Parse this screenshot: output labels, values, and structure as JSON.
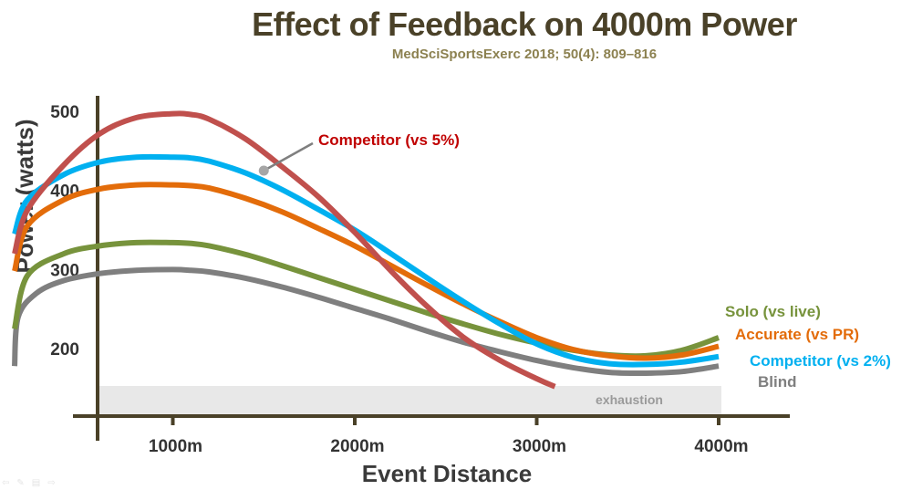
{
  "header": {
    "title": "Effect of Feedback on 4000m Power",
    "subtitle": "MedSciSportsExerc 2018; 50(4): 809–816"
  },
  "chart_data": {
    "type": "line",
    "title": "Effect of Feedback on 4000m Power",
    "subtitle": "MedSciSportsExerc 2018; 50(4): 809–816",
    "xlabel": "Event Distance",
    "ylabel": "Power (watts)",
    "xlim": [
      0,
      4350
    ],
    "ylim": [
      100,
      520
    ],
    "x_ticks": [
      1000,
      2000,
      3000,
      4000
    ],
    "x_tick_labels": [
      "1000m",
      "2000m",
      "3000m",
      "4000m"
    ],
    "y_ticks": [
      200,
      300,
      400,
      500
    ],
    "y_tick_labels": [
      "200",
      "300",
      "400",
      "500"
    ],
    "grid": false,
    "legend": "inline labels at right end of curves",
    "band": {
      "label": "exhaustion",
      "y_range": [
        135,
        166
      ],
      "x_range": [
        0,
        4000
      ]
    },
    "series": [
      {
        "name": "Competitor (vs 5%)",
        "color": "#c0504d",
        "x": [
          80,
          200,
          400,
          600,
          800,
          1000,
          1100,
          1200,
          1400,
          1600,
          1800,
          2000,
          2200,
          2400,
          2600,
          2800,
          3000,
          3100
        ],
        "y": [
          320,
          375,
          432,
          472,
          492,
          497,
          496,
          490,
          465,
          430,
          392,
          347,
          298,
          253,
          214,
          185,
          162,
          152
        ],
        "annotation": {
          "label": "Competitor (vs 5%)",
          "x": 1500,
          "y": 425
        }
      },
      {
        "name": "Competitor (vs 2%)",
        "color": "#00b0f0",
        "x": [
          80,
          200,
          400,
          600,
          800,
          1000,
          1100,
          1200,
          1400,
          1600,
          1800,
          2000,
          2200,
          2400,
          2600,
          2800,
          3000,
          3200,
          3400,
          3600,
          3800,
          4000
        ],
        "y": [
          345,
          388,
          420,
          436,
          442,
          442,
          441,
          437,
          422,
          401,
          376,
          350,
          320,
          289,
          259,
          231,
          206,
          189,
          181,
          180,
          183,
          190
        ]
      },
      {
        "name": "Accurate (vs PR)",
        "color": "#e36c0a",
        "x": [
          80,
          200,
          400,
          600,
          800,
          1000,
          1100,
          1200,
          1400,
          1600,
          1800,
          2000,
          2200,
          2400,
          2600,
          2800,
          3000,
          3200,
          3400,
          3600,
          3800,
          4000
        ],
        "y": [
          298,
          355,
          388,
          402,
          407,
          407,
          406,
          403,
          390,
          373,
          352,
          330,
          305,
          280,
          256,
          234,
          214,
          199,
          191,
          188,
          192,
          203
        ]
      },
      {
        "name": "Solo (vs live)",
        "color": "#77933c",
        "x": [
          80,
          200,
          400,
          600,
          800,
          1000,
          1100,
          1200,
          1400,
          1600,
          1800,
          2000,
          2200,
          2400,
          2600,
          2800,
          3000,
          3200,
          3400,
          3600,
          3800,
          4000
        ],
        "y": [
          225,
          292,
          320,
          330,
          334,
          334,
          333,
          330,
          319,
          305,
          290,
          275,
          260,
          245,
          231,
          218,
          207,
          198,
          192,
          191,
          198,
          214
        ]
      },
      {
        "name": "Blind",
        "color": "#7f7f7f",
        "x": [
          80,
          150,
          250,
          400,
          600,
          800,
          1000,
          1100,
          1200,
          1400,
          1600,
          1800,
          2000,
          2200,
          2400,
          2600,
          2800,
          3000,
          3200,
          3400,
          3600,
          3800,
          4000
        ],
        "y": [
          178,
          240,
          270,
          286,
          295,
          299,
          300,
          299,
          297,
          289,
          278,
          265,
          251,
          237,
          222,
          208,
          196,
          185,
          176,
          170,
          169,
          171,
          178
        ]
      }
    ],
    "labels": [
      {
        "text": "Solo (vs live)",
        "color": "#77933c"
      },
      {
        "text": "Accurate (vs PR)",
        "color": "#e36c0a"
      },
      {
        "text": "Competitor (vs 2%)",
        "color": "#00b0f0"
      },
      {
        "text": "Blind",
        "color": "#7f7f7f"
      }
    ],
    "axis_color": "#4a4128"
  }
}
